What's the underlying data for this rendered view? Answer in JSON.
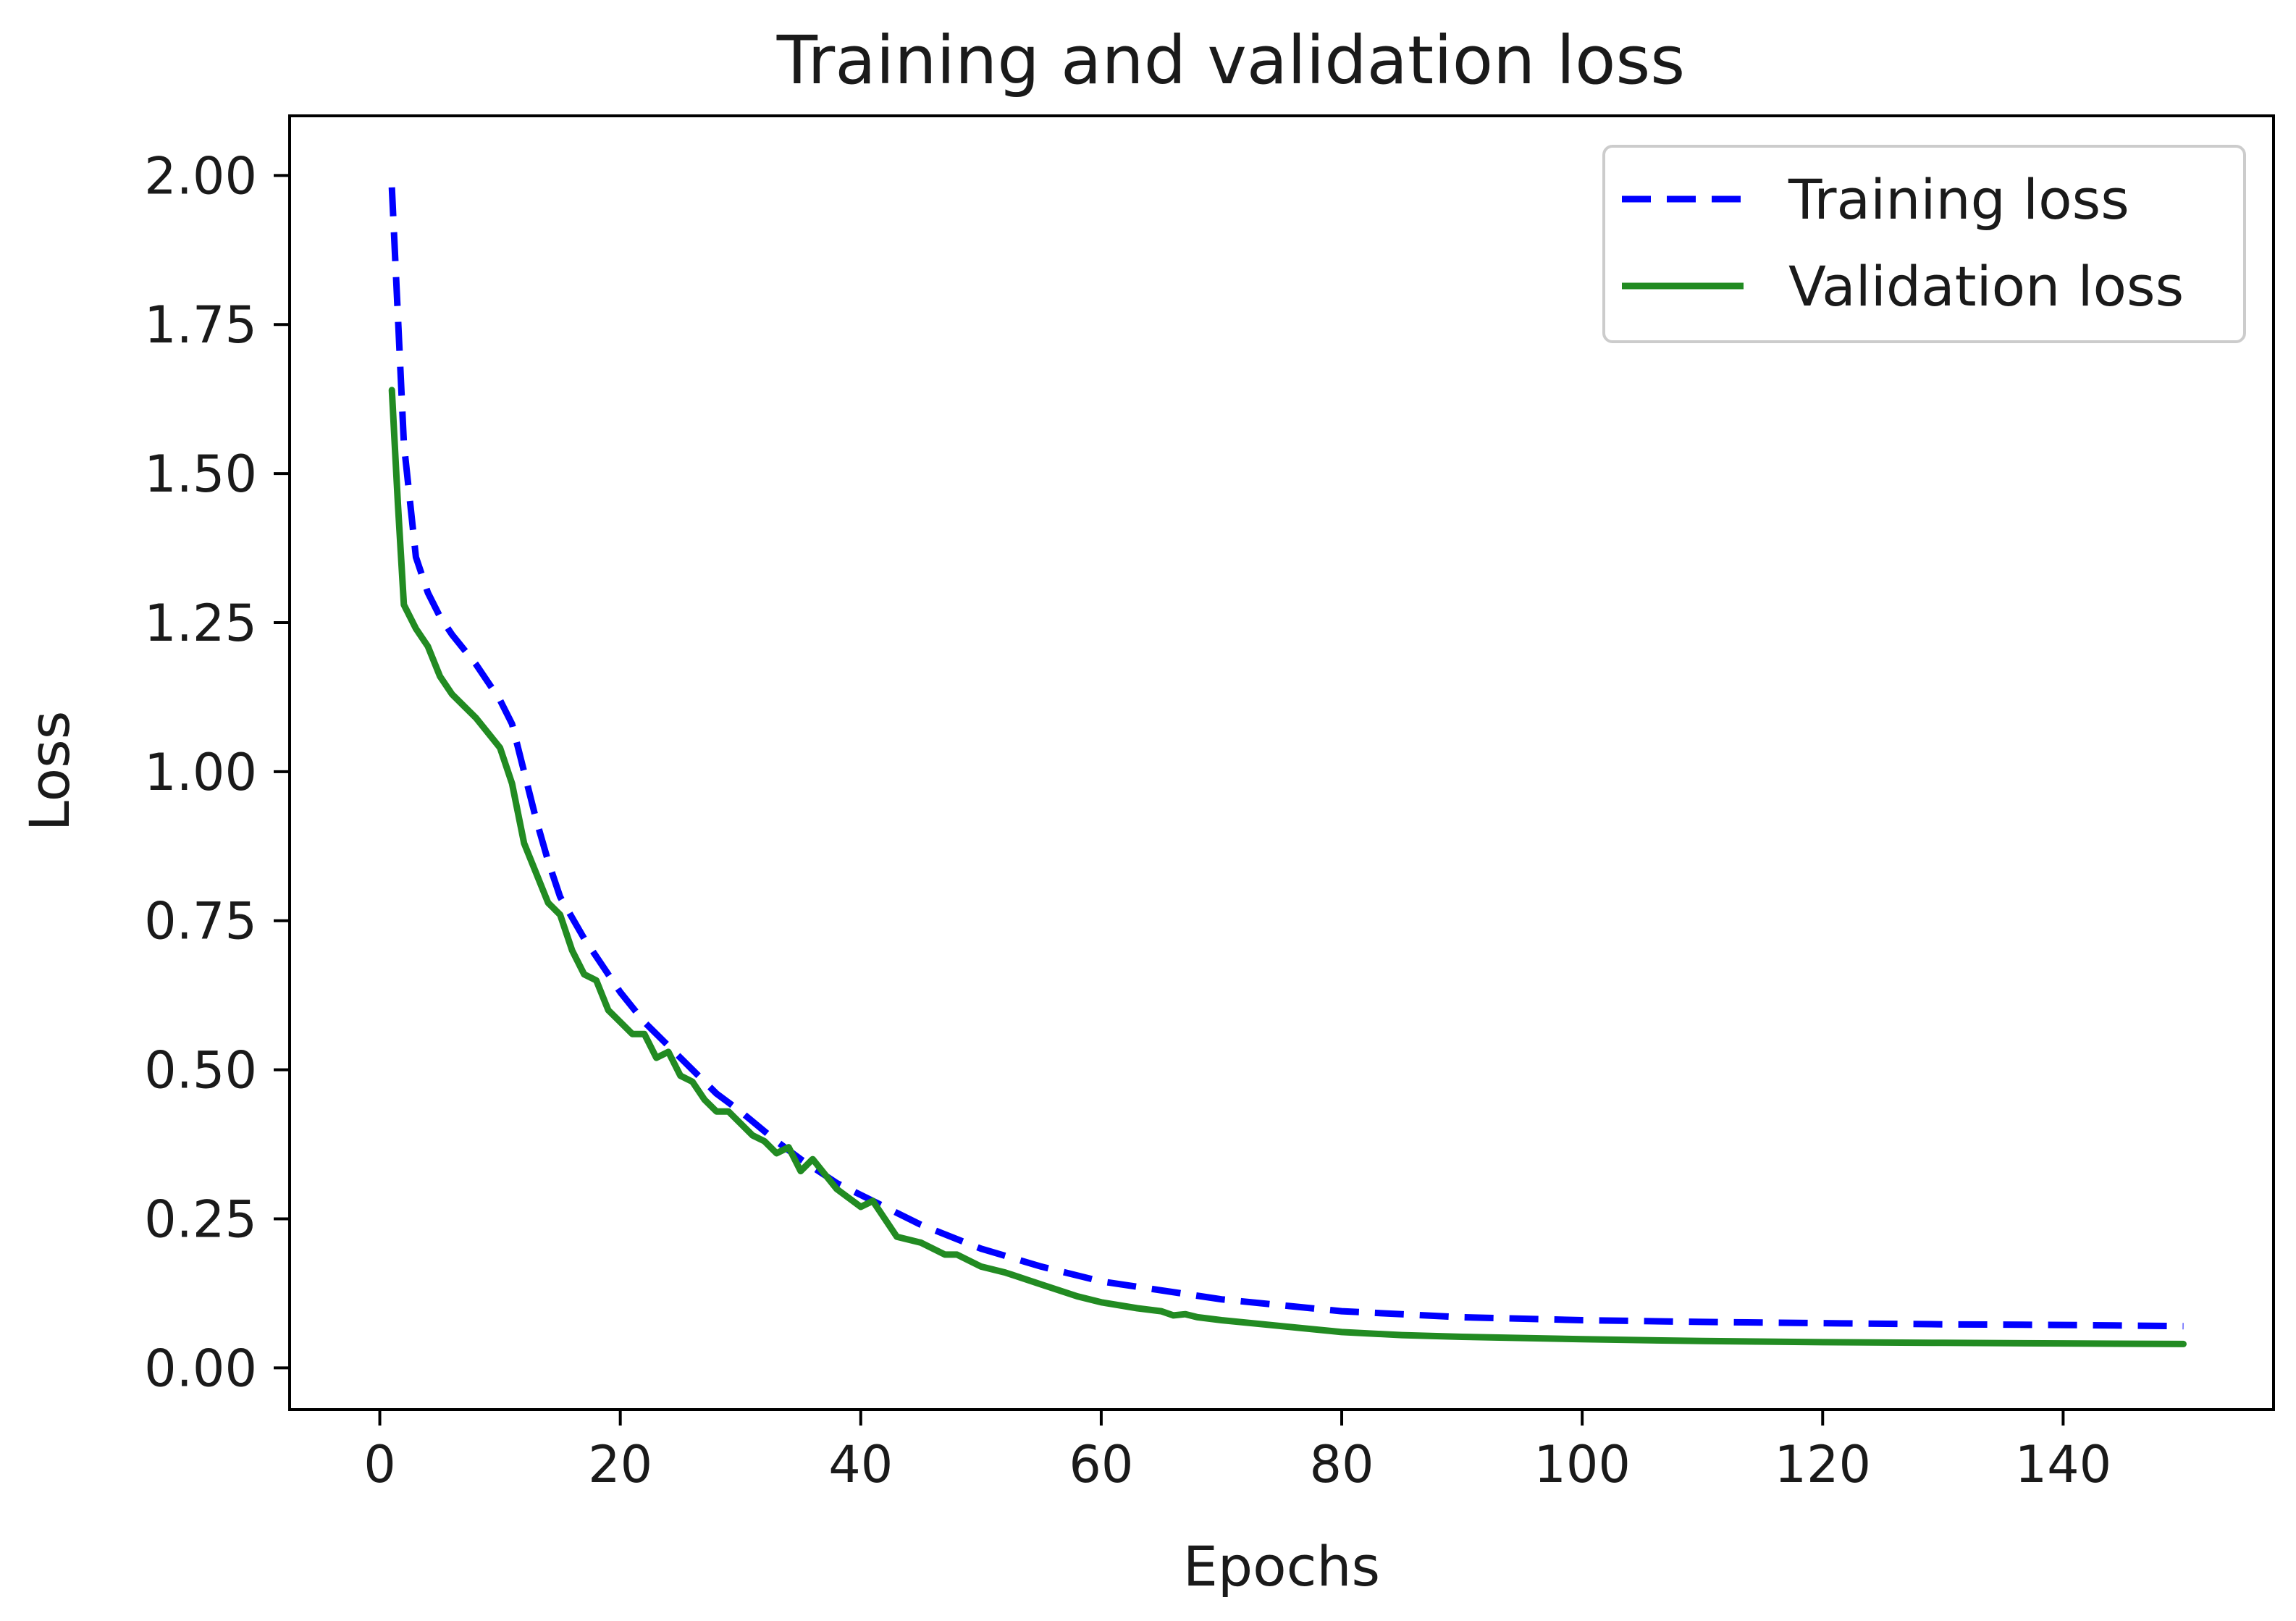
{
  "chart_data": {
    "type": "line",
    "title": "Training and validation loss",
    "xlabel": "Epochs",
    "ylabel": "Loss",
    "xlim": [
      -7.5,
      157.5
    ],
    "ylim": [
      -0.07,
      2.1
    ],
    "x_ticks": [
      0,
      20,
      40,
      60,
      80,
      100,
      120,
      140
    ],
    "x_tick_labels": [
      "0",
      "20",
      "40",
      "60",
      "80",
      "100",
      "120",
      "140"
    ],
    "y_ticks": [
      0.0,
      0.25,
      0.5,
      0.75,
      1.0,
      1.25,
      1.5,
      1.75,
      2.0
    ],
    "y_tick_labels": [
      "0.00",
      "0.25",
      "0.50",
      "0.75",
      "1.00",
      "1.25",
      "1.50",
      "1.75",
      "2.00"
    ],
    "grid": false,
    "legend_position": "top-right",
    "series": [
      {
        "name": "Training loss",
        "color": "#0000ff",
        "style": "dashed",
        "x": [
          1,
          2,
          3,
          4,
          5,
          6,
          8,
          10,
          11,
          12,
          13,
          14,
          15,
          17,
          18,
          20,
          22,
          25,
          28,
          30,
          33,
          35,
          38,
          40,
          45,
          50,
          55,
          60,
          65,
          70,
          80,
          90,
          100,
          110,
          120,
          130,
          140,
          150
        ],
        "values": [
          1.98,
          1.55,
          1.36,
          1.3,
          1.26,
          1.23,
          1.18,
          1.12,
          1.08,
          1.0,
          0.92,
          0.85,
          0.79,
          0.72,
          0.69,
          0.63,
          0.58,
          0.52,
          0.46,
          0.43,
          0.38,
          0.35,
          0.31,
          0.29,
          0.24,
          0.2,
          0.17,
          0.145,
          0.13,
          0.115,
          0.095,
          0.085,
          0.08,
          0.077,
          0.075,
          0.073,
          0.072,
          0.07
        ]
      },
      {
        "name": "Validation loss",
        "color": "#228b22",
        "style": "solid",
        "x": [
          1,
          1.5,
          2,
          3,
          4,
          5,
          6,
          8,
          10,
          11,
          12,
          13,
          14,
          15,
          16,
          17,
          18,
          19,
          20,
          21,
          22,
          23,
          24,
          25,
          26,
          27,
          28,
          29,
          30,
          31,
          32,
          33,
          34,
          35,
          36,
          38,
          40,
          41,
          42,
          43,
          45,
          47,
          48,
          50,
          52,
          55,
          58,
          60,
          63,
          65,
          66,
          67,
          68,
          70,
          75,
          80,
          85,
          90,
          100,
          110,
          120,
          130,
          140,
          150
        ],
        "values": [
          1.64,
          1.45,
          1.28,
          1.24,
          1.21,
          1.16,
          1.13,
          1.09,
          1.04,
          0.98,
          0.88,
          0.83,
          0.78,
          0.76,
          0.7,
          0.66,
          0.65,
          0.6,
          0.58,
          0.56,
          0.56,
          0.52,
          0.53,
          0.49,
          0.48,
          0.45,
          0.43,
          0.43,
          0.41,
          0.39,
          0.38,
          0.36,
          0.37,
          0.33,
          0.35,
          0.3,
          0.27,
          0.28,
          0.25,
          0.22,
          0.21,
          0.19,
          0.19,
          0.17,
          0.16,
          0.14,
          0.12,
          0.11,
          0.1,
          0.095,
          0.088,
          0.09,
          0.085,
          0.08,
          0.07,
          0.06,
          0.055,
          0.052,
          0.048,
          0.045,
          0.043,
          0.042,
          0.041,
          0.04
        ]
      }
    ]
  }
}
